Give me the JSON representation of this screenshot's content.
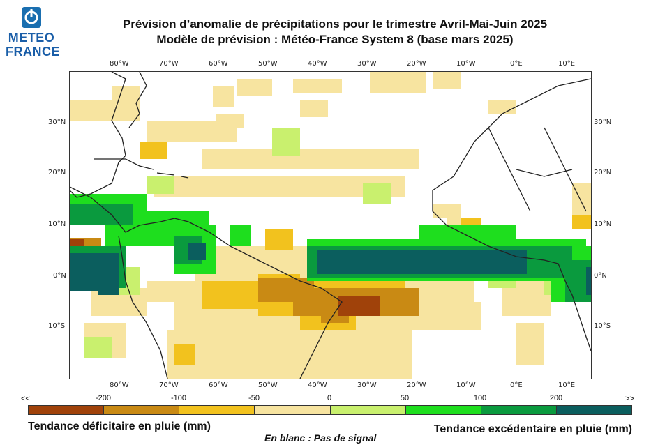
{
  "logo": {
    "line1": "METEO",
    "line2": "FRANCE"
  },
  "title": {
    "line1": "Prévision d’anomalie de précipitations pour le trimestre Avril-Mai-Juin 2025",
    "line2": "Modèle de prévision : Météo-France System 8 (base mars 2025)"
  },
  "axes": {
    "lon_labels": [
      "80°W",
      "70°W",
      "60°W",
      "50°W",
      "40°W",
      "30°W",
      "20°W",
      "10°W",
      "0°E",
      "10°E"
    ],
    "lat_labels": [
      "30°N",
      "20°N",
      "10°N",
      "0°N",
      "10°S"
    ]
  },
  "colorbar": {
    "left_end": "<<",
    "right_end": ">>",
    "ticks": [
      "-200",
      "-100",
      "-50",
      "0",
      "50",
      "100",
      "200"
    ],
    "colors": [
      "#a0420a",
      "#c98a14",
      "#f2c21e",
      "#f7e4a0",
      "#c9f06e",
      "#1ede1e",
      "#0a9a3e",
      "#0b5e5e"
    ]
  },
  "legend": {
    "deficit": "Tendance déficitaire en pluie (mm)",
    "excess": "Tendance excédentaire en pluie (mm)",
    "no_signal": "En blanc : Pas de signal"
  }
}
